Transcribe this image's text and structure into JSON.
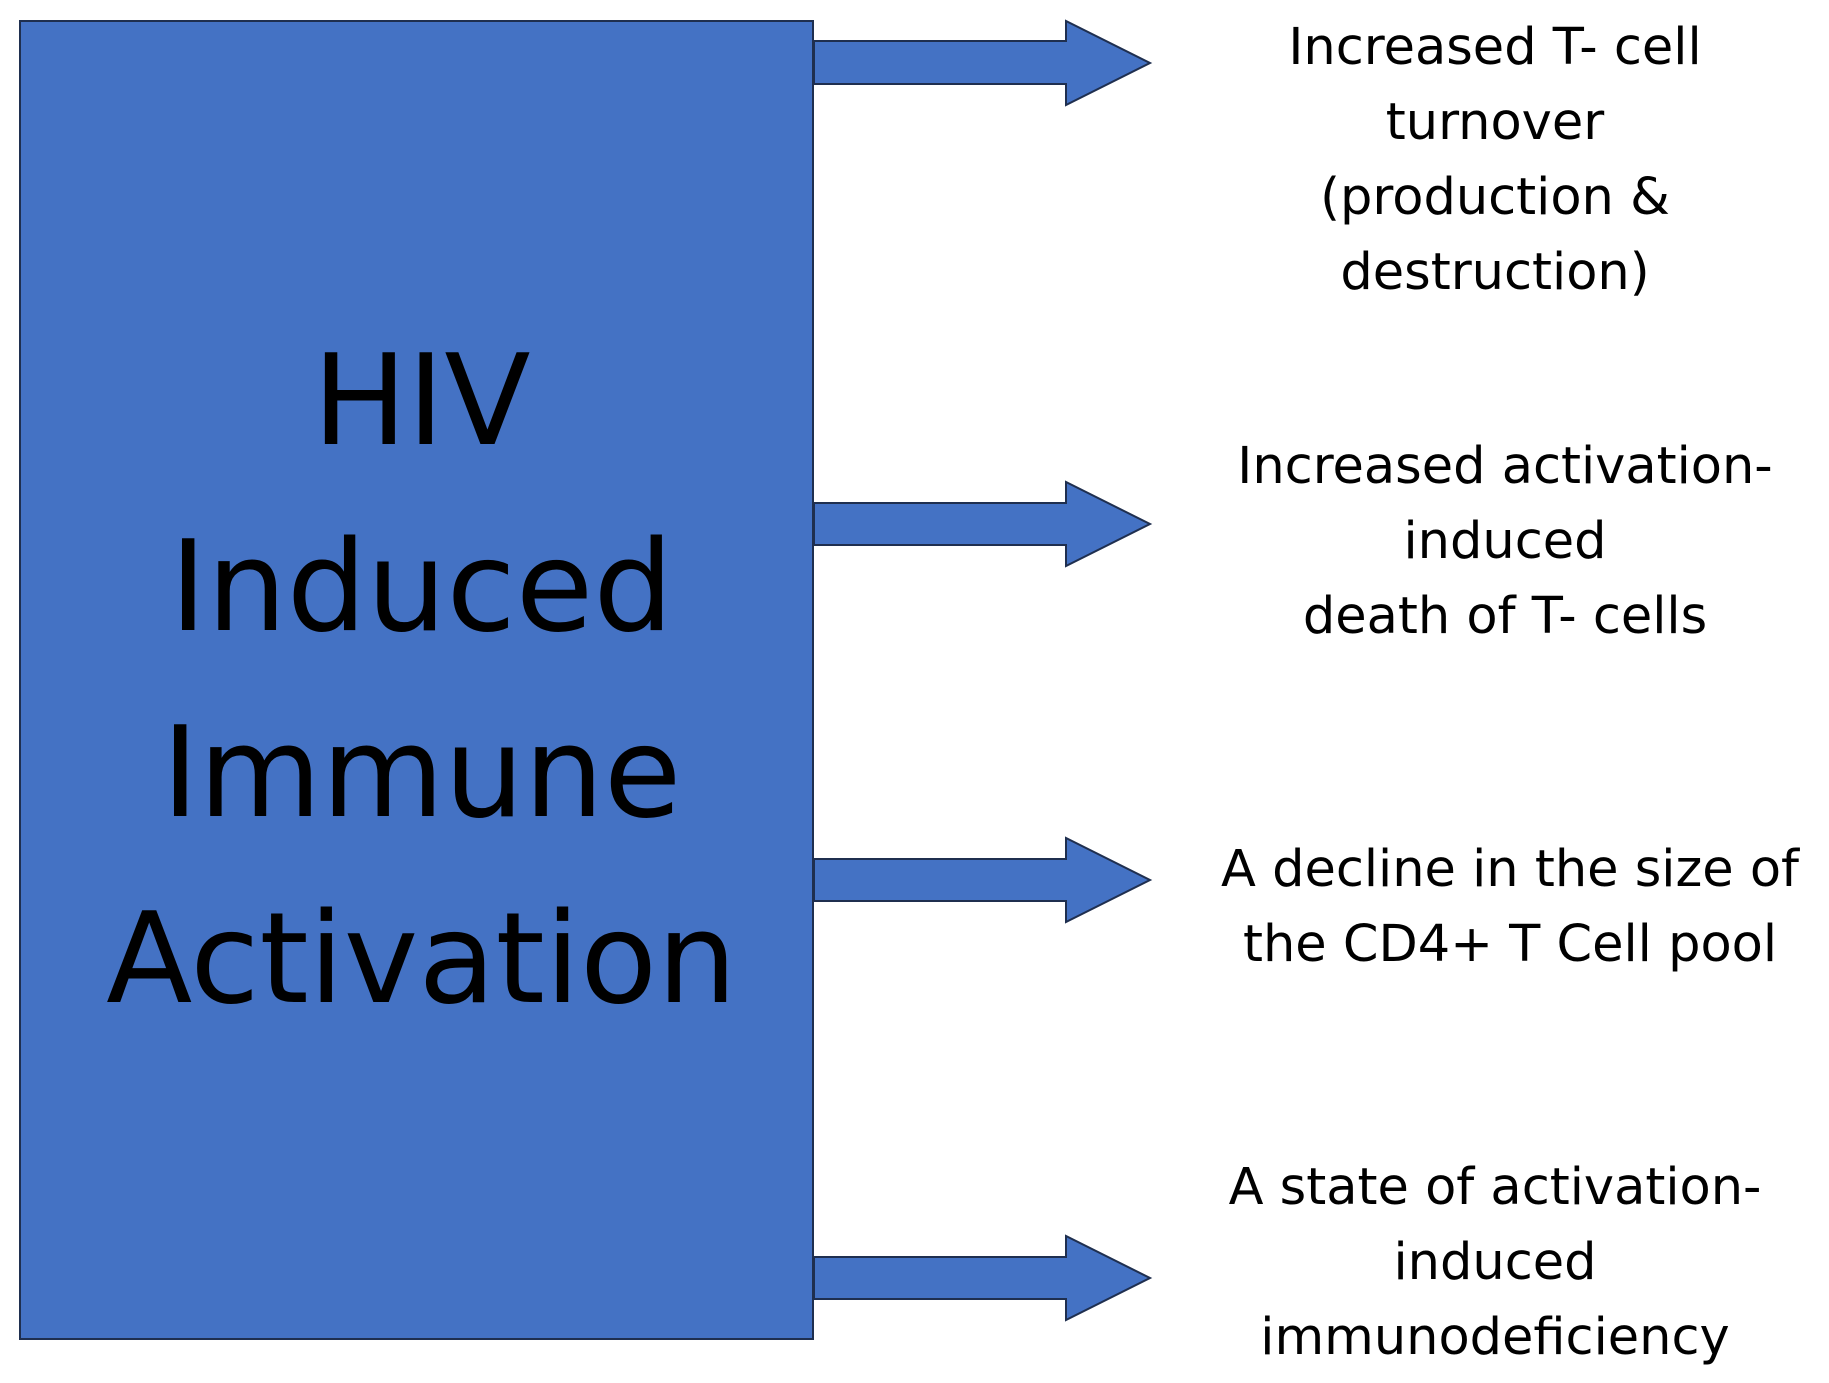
{
  "colors": {
    "box_fill": "#4472c4",
    "arrow_fill": "#4472c4",
    "stroke": "#1f2f4f",
    "text": "#000000",
    "background": "#ffffff"
  },
  "main_box": {
    "lines": [
      "HIV",
      "Induced",
      "Immune",
      "Activation"
    ]
  },
  "outcomes": [
    {
      "lines": [
        "Increased T- cell",
        "turnover",
        "(production &",
        "destruction)"
      ]
    },
    {
      "lines": [
        "Increased activation-",
        "induced",
        "death of T- cells"
      ]
    },
    {
      "lines": [
        "A decline in the size of",
        "the CD4+ T Cell pool"
      ]
    },
    {
      "lines": [
        "A state of activation-",
        "induced",
        "immunodeficiency"
      ]
    }
  ]
}
